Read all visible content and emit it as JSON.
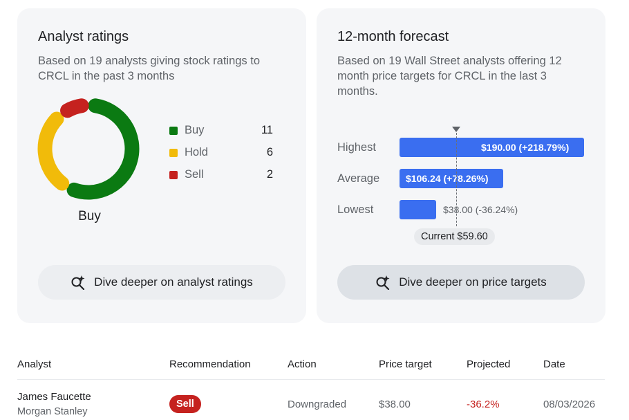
{
  "ratings": {
    "title": "Analyst ratings",
    "description": "Based on 19 analysts giving stock ratings to CRCL in the past 3 months",
    "consensus": "Buy",
    "legend": [
      {
        "label": "Buy",
        "count": "11",
        "color": "#0b7a12"
      },
      {
        "label": "Hold",
        "count": "6",
        "color": "#f1bb0a"
      },
      {
        "label": "Sell",
        "count": "2",
        "color": "#c5221f"
      }
    ],
    "dive_label": "Dive deeper on analyst ratings"
  },
  "forecast": {
    "title": "12-month forecast",
    "description": "Based on 19 Wall Street analysts offering 12 month price targets for CRCL in the last 3 months.",
    "rows": [
      {
        "label": "Highest",
        "value": "$190.00 (+218.79%)"
      },
      {
        "label": "Average",
        "value": "$106.24 (+78.26%)"
      },
      {
        "label": "Lowest",
        "value": "$38.00 (-36.24%)"
      }
    ],
    "current": "Current $59.60",
    "bar_color": "#3a6ef0",
    "dive_label": "Dive deeper on price targets"
  },
  "table": {
    "headers": [
      "Analyst",
      "Recommendation",
      "Action",
      "Price target",
      "Projected",
      "Date"
    ],
    "rows": [
      {
        "analyst": "James Faucette",
        "firm": "Morgan Stanley",
        "recommendation": "Sell",
        "action": "Downgraded",
        "price_target": "$38.00",
        "projected": "-36.2%",
        "date": "08/03/2026"
      }
    ]
  }
}
